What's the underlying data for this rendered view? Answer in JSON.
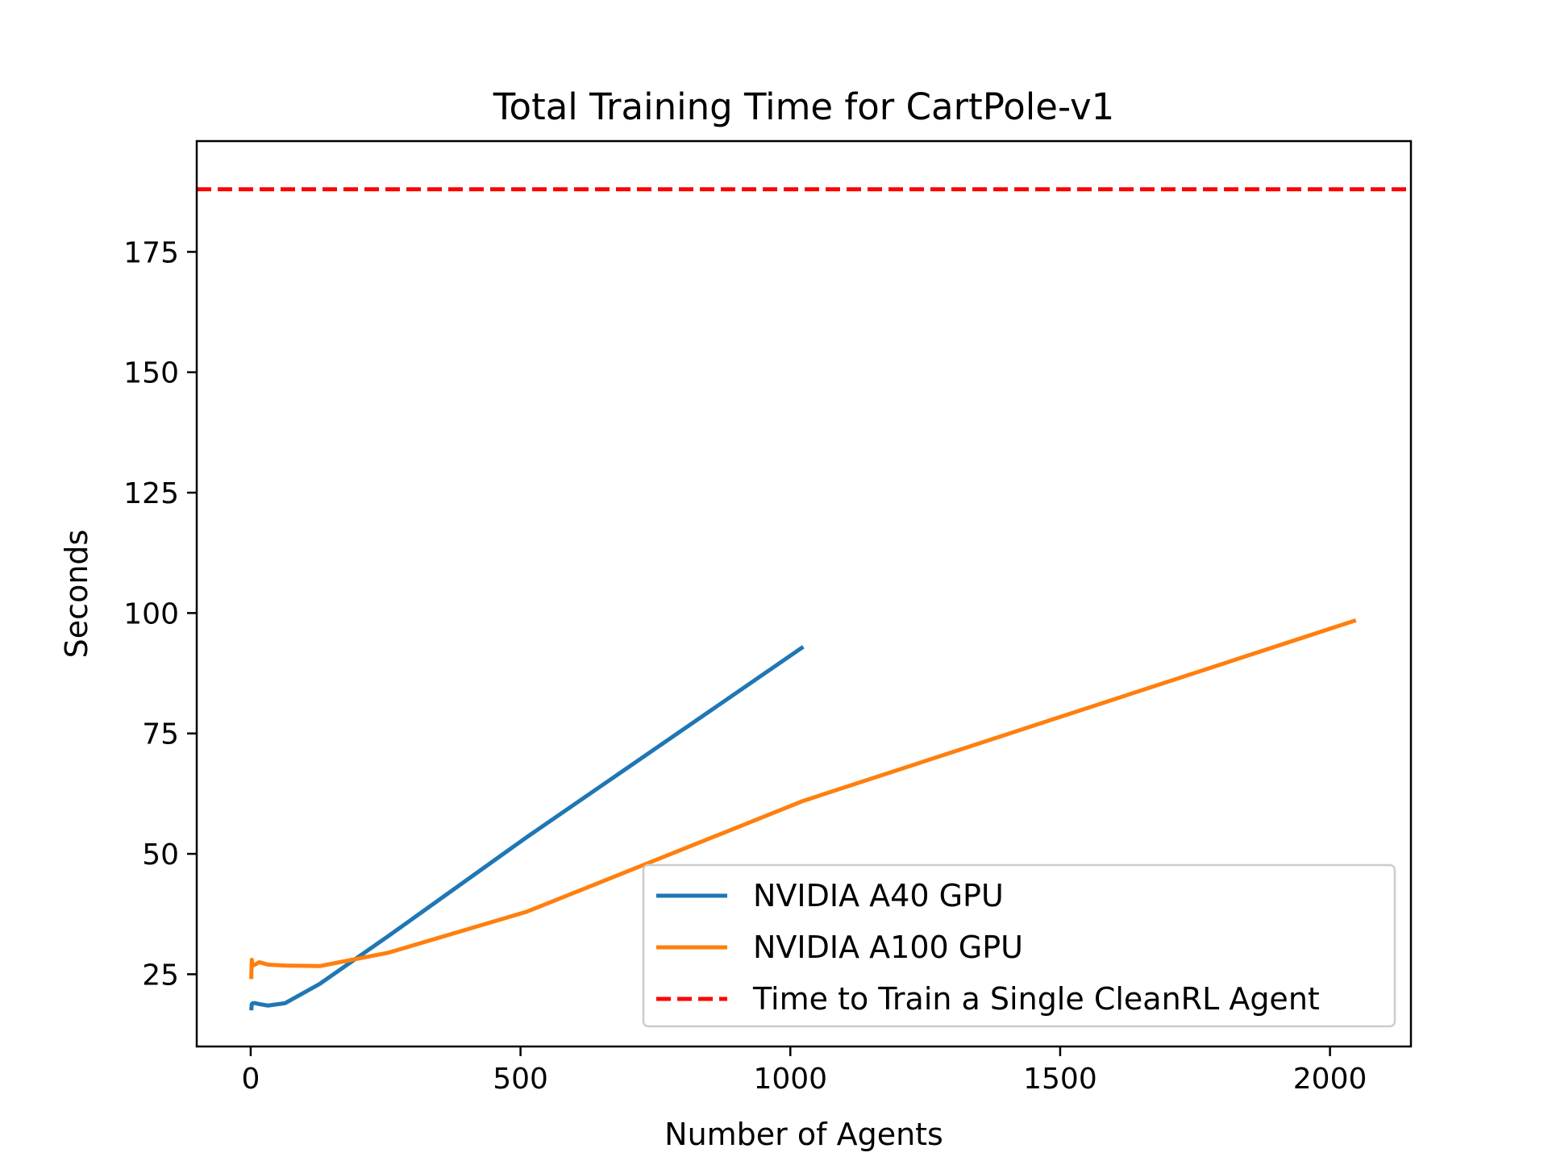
{
  "chart_data": {
    "type": "line",
    "title": "Total Training Time for CartPole-v1",
    "xlabel": "Number of Agents",
    "ylabel": "Seconds",
    "xlim": [
      -100,
      2150
    ],
    "ylim": [
      10,
      198
    ],
    "xticks": [
      0,
      500,
      1000,
      1500,
      2000
    ],
    "yticks": [
      25,
      50,
      75,
      100,
      125,
      150,
      175
    ],
    "grid": false,
    "legend_position": "lower-right",
    "series": [
      {
        "name": "NVIDIA A40 GPU",
        "color": "#1f77b4",
        "style": "solid",
        "x": [
          1,
          2,
          4,
          8,
          16,
          32,
          64,
          128,
          256,
          512,
          1024
        ],
        "y": [
          17.5,
          18.8,
          19.0,
          19.0,
          18.8,
          18.5,
          19.0,
          23.0,
          33.0,
          53.5,
          93.0
        ]
      },
      {
        "name": "NVIDIA A100 GPU",
        "color": "#ff7f0e",
        "style": "solid",
        "x": [
          1,
          2,
          4,
          8,
          16,
          32,
          64,
          128,
          256,
          512,
          1024,
          2048
        ],
        "y": [
          24.0,
          28.0,
          26.8,
          27.0,
          27.5,
          27.0,
          26.8,
          26.7,
          29.5,
          38.0,
          61.0,
          98.5
        ]
      },
      {
        "name": "Time to Train a Single CleanRL Agent",
        "color": "#ff0000",
        "style": "dashed",
        "hline": 188
      }
    ]
  }
}
